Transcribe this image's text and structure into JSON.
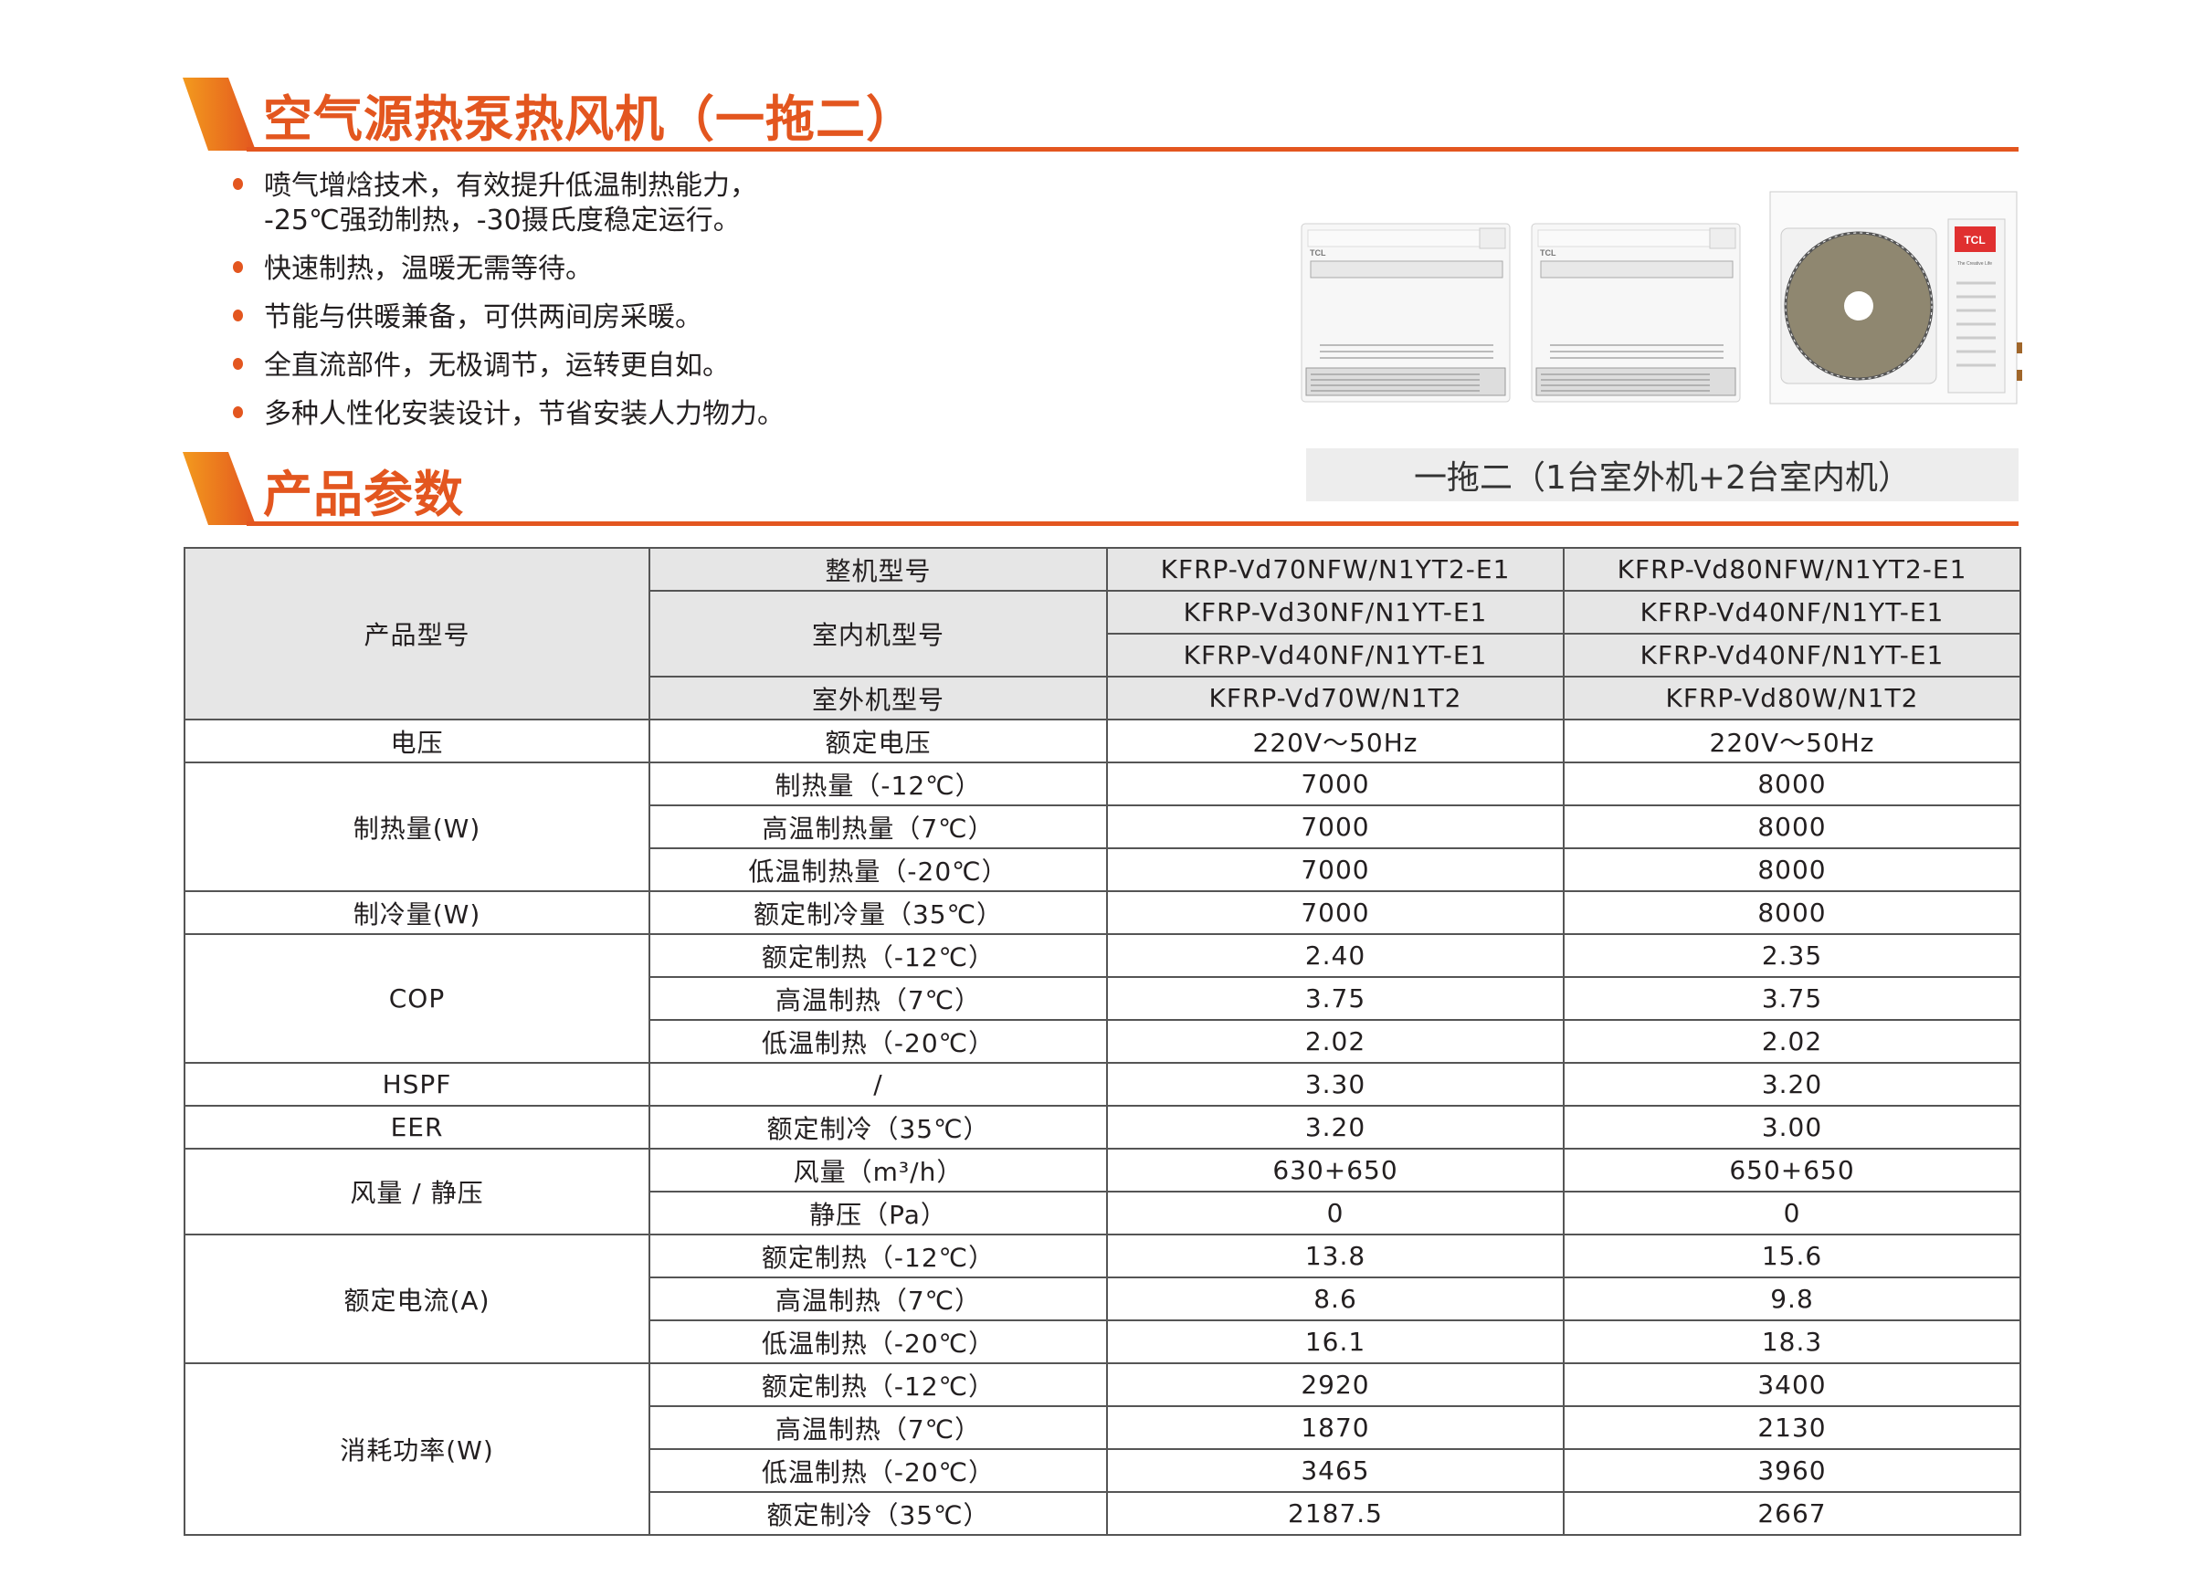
{
  "section1": {
    "title": "空气源热泵热风机（一拖二）",
    "bullets": [
      [
        "喷气增焓技术，有效提升低温制热能力，",
        "-25℃强劲制热，-30摄氏度稳定运行。"
      ],
      [
        "快速制热，温暖无需等待。"
      ],
      [
        "节能与供暖兼备，可供两间房采暖。"
      ],
      [
        "全直流部件，无极调节，运转更自如。"
      ],
      [
        "多种人性化安装设计，节省安装人力物力。"
      ]
    ]
  },
  "product_image": {
    "indoor_brand": "TCL",
    "outdoor_brand": "TCL",
    "outdoor_slogan": "The Creative Life"
  },
  "section2": {
    "title": "产品参数",
    "config_label": "一拖二（1台室外机+2台室内机）"
  },
  "colors": {
    "accent": "#e3561f",
    "accent_light": "#f39a1e",
    "header_bg": "#e6e6e6",
    "config_bg": "#ededed"
  },
  "table": {
    "groups": [
      {
        "label": "产品型号",
        "head": true,
        "rows": [
          {
            "param": "整机型号",
            "v1": "KFRP-Vd70NFW/N1YT2-E1",
            "v2": "KFRP-Vd80NFW/N1YT2-E1"
          },
          {
            "param": "室内机型号",
            "param_span": 2,
            "v1": "KFRP-Vd30NF/N1YT-E1",
            "v2": "KFRP-Vd40NF/N1YT-E1"
          },
          {
            "v1": "KFRP-Vd40NF/N1YT-E1",
            "v2": "KFRP-Vd40NF/N1YT-E1"
          },
          {
            "param": "室外机型号",
            "v1": "KFRP-Vd70W/N1T2",
            "v2": "KFRP-Vd80W/N1T2"
          }
        ]
      },
      {
        "label": "电压",
        "rows": [
          {
            "param": "额定电压",
            "v1": "220V～50Hz",
            "v2": "220V～50Hz"
          }
        ]
      },
      {
        "label": "制热量(W)",
        "rows": [
          {
            "param": "制热量（-12℃）",
            "v1": "7000",
            "v2": "8000"
          },
          {
            "param": "高温制热量（7℃）",
            "v1": "7000",
            "v2": "8000"
          },
          {
            "param": "低温制热量（-20℃）",
            "v1": "7000",
            "v2": "8000"
          }
        ]
      },
      {
        "label": "制冷量(W)",
        "rows": [
          {
            "param": "额定制冷量（35℃）",
            "v1": "7000",
            "v2": "8000"
          }
        ]
      },
      {
        "label": "COP",
        "rows": [
          {
            "param": "额定制热（-12℃）",
            "v1": "2.40",
            "v2": "2.35"
          },
          {
            "param": "高温制热（7℃）",
            "v1": "3.75",
            "v2": "3.75"
          },
          {
            "param": "低温制热（-20℃）",
            "v1": "2.02",
            "v2": "2.02"
          }
        ]
      },
      {
        "label": "HSPF",
        "rows": [
          {
            "param": "/",
            "v1": "3.30",
            "v2": "3.20"
          }
        ]
      },
      {
        "label": "EER",
        "rows": [
          {
            "param": "额定制冷（35℃）",
            "v1": "3.20",
            "v2": "3.00"
          }
        ]
      },
      {
        "label": "风量 / 静压",
        "rows": [
          {
            "param": "风量（m³/h）",
            "v1": "630+650",
            "v2": "650+650"
          },
          {
            "param": "静压（Pa）",
            "v1": "0",
            "v2": "0"
          }
        ]
      },
      {
        "label": "额定电流(A)",
        "rows": [
          {
            "param": "额定制热（-12℃）",
            "v1": "13.8",
            "v2": "15.6"
          },
          {
            "param": "高温制热（7℃）",
            "v1": "8.6",
            "v2": "9.8"
          },
          {
            "param": "低温制热（-20℃）",
            "v1": "16.1",
            "v2": "18.3"
          }
        ]
      },
      {
        "label": "消耗功率(W)",
        "rows": [
          {
            "param": "额定制热（-12℃）",
            "v1": "2920",
            "v2": "3400"
          },
          {
            "param": "高温制热（7℃）",
            "v1": "1870",
            "v2": "2130"
          },
          {
            "param": "低温制热（-20℃）",
            "v1": "3465",
            "v2": "3960"
          },
          {
            "param": "额定制冷（35℃）",
            "v1": "2187.5",
            "v2": "2667"
          }
        ]
      }
    ]
  }
}
